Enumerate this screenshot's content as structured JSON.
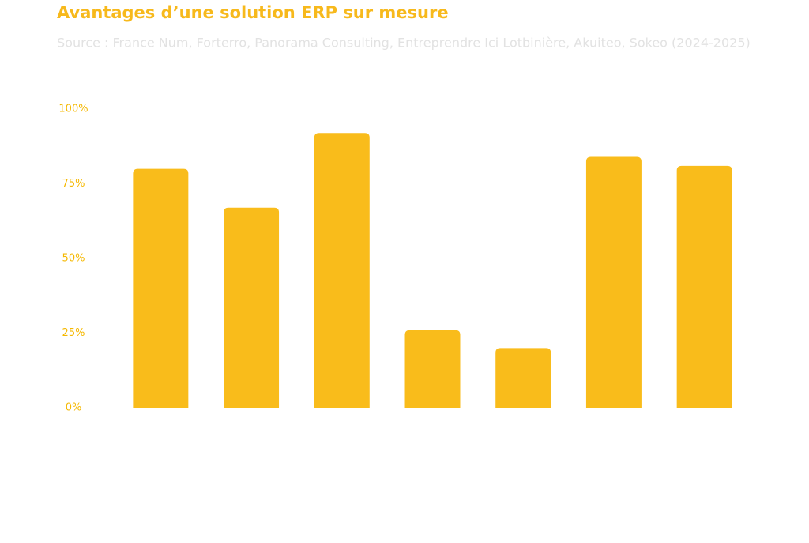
{
  "chart_data": {
    "type": "bar",
    "title": "Avantages d’une solution ERP sur mesure",
    "subtitle": "Source : France Num, Forterro, Panorama Consulting, Entreprendre Ici Lotbinière, Akuiteo, Sokeo (2024-2025)",
    "categories": [
      null,
      null,
      null,
      null,
      null,
      null,
      null
    ],
    "values": [
      80,
      67,
      92,
      26,
      20,
      84,
      81
    ],
    "color": "#f9bc1b",
    "ylim": [
      0,
      100
    ],
    "yticks": [
      {
        "value": 0,
        "label": "0%"
      },
      {
        "value": 25,
        "label": "25%"
      },
      {
        "value": 50,
        "label": "50%"
      },
      {
        "value": 75,
        "label": "75%"
      },
      {
        "value": 100,
        "label": "100%"
      }
    ],
    "grid": false
  }
}
